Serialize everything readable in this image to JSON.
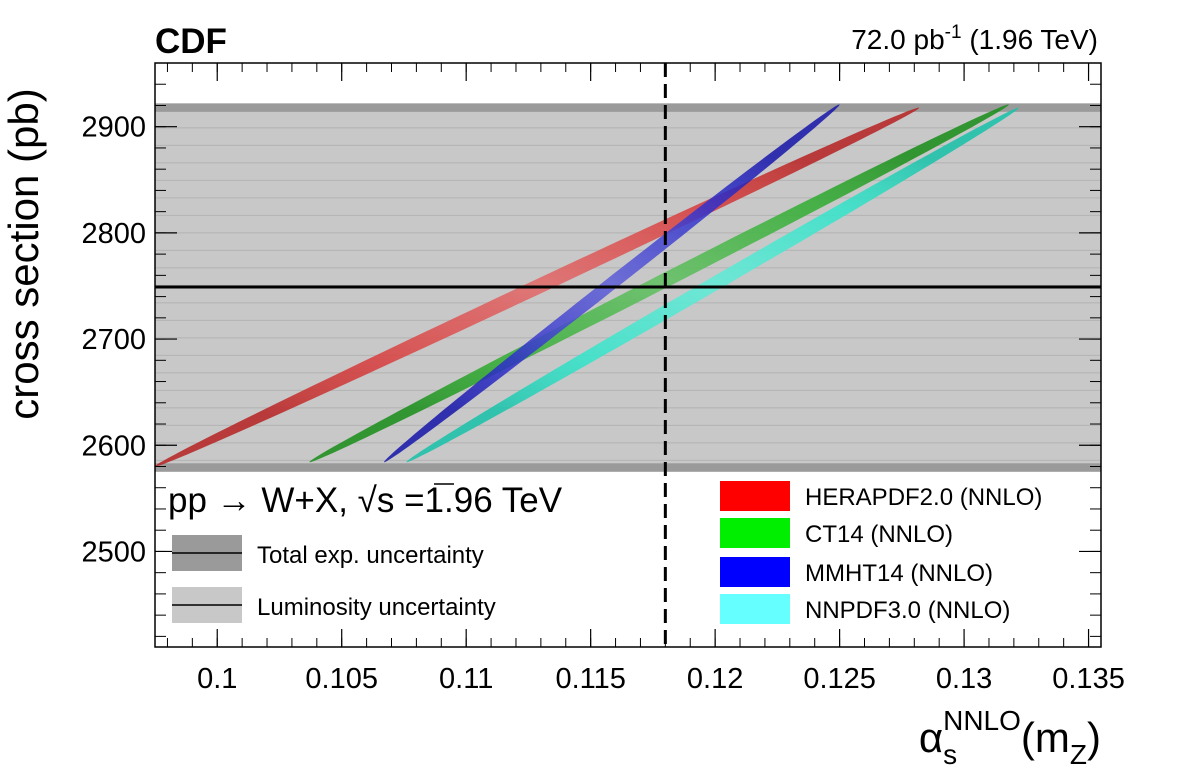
{
  "chart_data": {
    "type": "scatter",
    "experiment_label": "CDF",
    "lumi_label": "72.0 pb",
    "lumi_exponent": "-1",
    "energy_label": " (1.96 TeV)",
    "xlabel_symbol": "α",
    "xlabel_sub": "s",
    "xlabel_sup": "NNLO",
    "xlabel_paren": "(m",
    "xlabel_paren_sub": "Z",
    "xlabel_close": ")",
    "ylabel": "cross section (pb)",
    "xlim": [
      0.0975,
      0.1355
    ],
    "ylim": [
      2410,
      2960
    ],
    "x_ticks": [
      {
        "value": 0.1,
        "label": "0.1"
      },
      {
        "value": 0.105,
        "label": "0.105"
      },
      {
        "value": 0.11,
        "label": "0.11"
      },
      {
        "value": 0.115,
        "label": "0.115"
      },
      {
        "value": 0.12,
        "label": "0.12"
      },
      {
        "value": 0.125,
        "label": "0.125"
      },
      {
        "value": 0.13,
        "label": "0.13"
      },
      {
        "value": 0.135,
        "label": "0.135"
      }
    ],
    "y_ticks": [
      {
        "value": 2500,
        "label": "2500"
      },
      {
        "value": 2600,
        "label": "2600"
      },
      {
        "value": 2700,
        "label": "2700"
      },
      {
        "value": 2800,
        "label": "2800"
      },
      {
        "value": 2900,
        "label": "2900"
      }
    ],
    "measurement": {
      "central": 2749,
      "total_exp_band": [
        2575,
        2922
      ],
      "luminosity_band": [
        2583,
        2914
      ]
    },
    "reference_alpha_s": 0.118,
    "process_label": "pp → W+X, ",
    "sqrt_label": "√s",
    "energy_text": " =1.96 TeV",
    "band_legend": [
      {
        "key": "total",
        "label": "Total exp. uncertainty",
        "color": "#9a9a9a"
      },
      {
        "key": "lumi",
        "label": "Luminosity uncertainty",
        "color": "#c8c8c8"
      }
    ],
    "series": [
      {
        "name": "HERAPDF2.0 (NNLO)",
        "color": "#ff0000",
        "fill": "#d42a2a",
        "ellipse": {
          "x_min": 0.0975,
          "x_max": 0.1282,
          "y_min": 2580,
          "y_max": 2918
        }
      },
      {
        "name": "CT14 (NNLO)",
        "color": "#00ee00",
        "fill": "#1ea51e",
        "ellipse": {
          "x_min": 0.1037,
          "x_max": 0.1318,
          "y_min": 2584,
          "y_max": 2921
        }
      },
      {
        "name": "MMHT14 (NNLO)",
        "color": "#0000ff",
        "fill": "#1c1cc6",
        "ellipse": {
          "x_min": 0.1067,
          "x_max": 0.125,
          "y_min": 2584,
          "y_max": 2921
        }
      },
      {
        "name": "NNPDF3.0 (NNLO)",
        "color": "#66ffff",
        "fill": "#1ee0c4",
        "ellipse": {
          "x_min": 0.1076,
          "x_max": 0.1322,
          "y_min": 2584,
          "y_max": 2918
        }
      }
    ]
  }
}
